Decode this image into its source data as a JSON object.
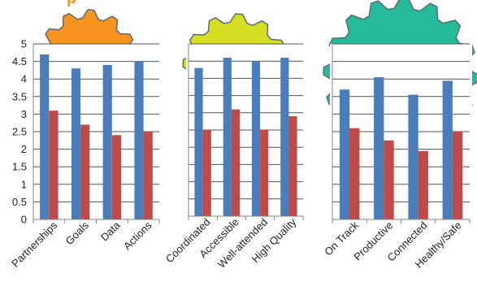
{
  "colors": {
    "series_a": "#4a7ebb",
    "series_b": "#be4b48",
    "gear_orange": "#f7941d",
    "gear_yellow": "#d7df23",
    "gear_teal": "#26b99a",
    "gear_outline": "#5a6a7a",
    "axis": "#868686",
    "grid": "#555555",
    "header_text": "#f7941d"
  },
  "icons": [
    "gear-icon-orange",
    "gear-icon-yellow",
    "gear-icon-teal"
  ],
  "chart_data": [
    {
      "type": "bar",
      "categories": [
        "Partnerships",
        "Goals",
        "Data",
        "Actions"
      ],
      "series": [
        {
          "values": [
            4.7,
            4.3,
            4.4,
            4.5
          ]
        },
        {
          "values": [
            3.1,
            2.7,
            2.4,
            2.5
          ]
        }
      ],
      "ylim": [
        0,
        5
      ],
      "yticks": [
        "0",
        "0.5",
        "1",
        "1.5",
        "2",
        "2.5",
        "3",
        "3.5",
        "4",
        "4.5",
        "5"
      ],
      "grid": true
    },
    {
      "type": "bar",
      "categories": [
        "Coordinated",
        "Accessible",
        "Well-attended",
        "High Quality"
      ],
      "series": [
        {
          "values": [
            4.3,
            4.6,
            4.5,
            4.6
          ]
        },
        {
          "values": [
            2.5,
            3.1,
            2.5,
            2.9
          ]
        }
      ],
      "ylim": [
        0,
        5
      ],
      "grid": true
    },
    {
      "type": "bar",
      "categories": [
        "On Track",
        "Productive",
        "Connected",
        "Healthy/Safe"
      ],
      "series": [
        {
          "values": [
            3.7,
            4.05,
            3.55,
            3.95
          ]
        },
        {
          "values": [
            2.6,
            2.25,
            1.95,
            2.5
          ]
        }
      ],
      "ylim": [
        0,
        5
      ],
      "grid": true
    }
  ]
}
